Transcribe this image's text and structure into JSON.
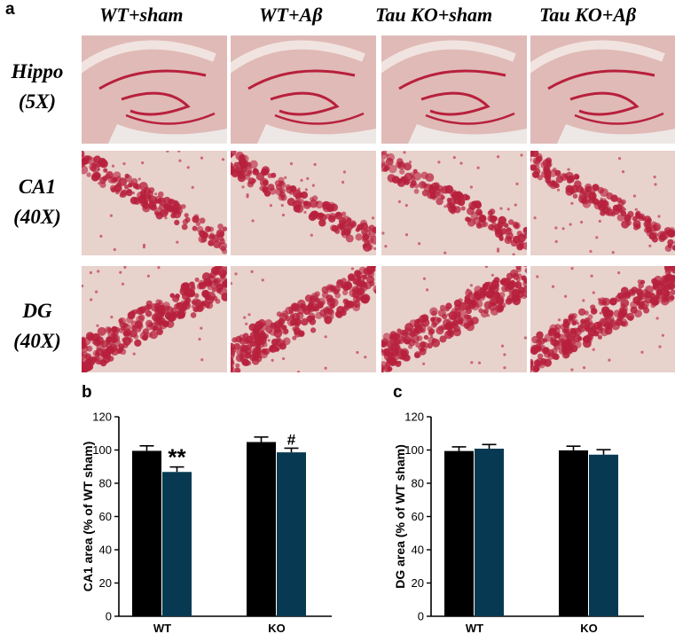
{
  "figure": {
    "panel_a_letter": "a",
    "panel_b_letter": "b",
    "panel_c_letter": "c",
    "columns": {
      "wt_sham": {
        "prefix": "WT",
        "suffix": "+sham"
      },
      "wt_abeta": {
        "prefix": "WT",
        "suffix": "+Aβ"
      },
      "ko_sham": {
        "prefix": "Tau KO",
        "suffix": "+sham"
      },
      "ko_abeta": {
        "prefix": "Tau KO",
        "suffix": "+Aβ"
      }
    },
    "rows": {
      "hippo": {
        "line1": "Hippo",
        "line2": "(5X)"
      },
      "ca1": {
        "line1": "CA1",
        "line2": "(40X)"
      },
      "dg": {
        "line1": "DG",
        "line2": "(40X)"
      }
    },
    "colors": {
      "sham": "#000000",
      "abeta": "#073a52",
      "tissue": "#e8d2cc",
      "stain": "#b7203c"
    }
  },
  "chart_data": [
    {
      "type": "bar",
      "panel": "b",
      "ylabel": "CA1 area (% of WT sham)",
      "categories": [
        "WT",
        "KO"
      ],
      "series": [
        {
          "values": [
            99.5,
            104.8
          ],
          "errors": [
            3,
            3
          ]
        },
        {
          "values": [
            86.8,
            98.6
          ],
          "errors": [
            3,
            2.5
          ]
        }
      ],
      "ylim": [
        0,
        120
      ],
      "yticks": [
        0,
        20,
        40,
        60,
        80,
        100,
        120
      ],
      "annotations": [
        "**",
        "#"
      ]
    },
    {
      "type": "bar",
      "panel": "c",
      "ylabel": "DG area (% of WT sham)",
      "categories": [
        "WT",
        "KO"
      ],
      "series": [
        {
          "values": [
            99.4,
            99.8
          ],
          "errors": [
            2.5,
            2.5
          ]
        },
        {
          "values": [
            100.8,
            97.2
          ],
          "errors": [
            2.5,
            3
          ]
        }
      ],
      "ylim": [
        0,
        120
      ],
      "yticks": [
        0,
        20,
        40,
        60,
        80,
        100,
        120
      ],
      "annotations": []
    }
  ]
}
